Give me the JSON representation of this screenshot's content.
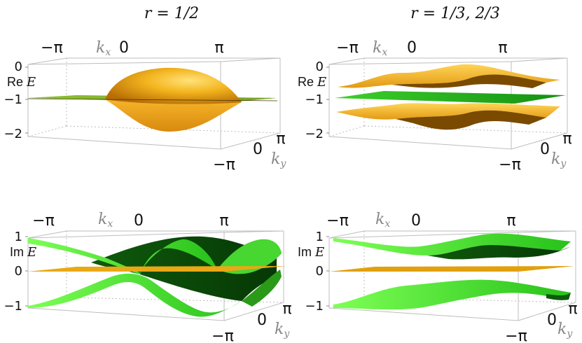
{
  "columns": [
    {
      "title": "r = 1/2"
    },
    {
      "title": "r = 1/3, 2/3"
    }
  ],
  "panels": [
    {
      "axis_label": "Re E",
      "axis_label_prefix": "Re",
      "axis_label_var": "E",
      "z_ticks": [
        "0",
        "−1",
        "−2"
      ],
      "kx_ticks": [
        "−π",
        "0",
        "π"
      ],
      "kx_label": "kx",
      "ky_ticks": [
        "−π",
        "0",
        "π"
      ],
      "ky_label": "ky"
    },
    {
      "axis_label": "Re E",
      "axis_label_prefix": "Re",
      "axis_label_var": "E",
      "z_ticks": [
        "0",
        "−1",
        "−2"
      ],
      "kx_ticks": [
        "−π",
        "0",
        "π"
      ],
      "kx_label": "kx",
      "ky_ticks": [
        "−π",
        "0",
        "π"
      ],
      "ky_label": "ky"
    },
    {
      "axis_label": "Im E",
      "axis_label_prefix": "Im",
      "axis_label_var": "E",
      "z_ticks": [
        "1",
        "0",
        "−1"
      ],
      "kx_ticks": [
        "−π",
        "0",
        "π"
      ],
      "kx_label": "kx",
      "ky_ticks": [
        "−π",
        "0",
        "π"
      ],
      "ky_label": "ky"
    },
    {
      "axis_label": "Im E",
      "axis_label_prefix": "Im",
      "axis_label_var": "E",
      "z_ticks": [
        "1",
        "0",
        "−1"
      ],
      "kx_ticks": [
        "−π",
        "0",
        "π"
      ],
      "kx_label": "kx",
      "ky_ticks": [
        "−π",
        "0",
        "π"
      ],
      "ky_label": "ky"
    }
  ],
  "colors": {
    "gold": "#f2b01e",
    "gold_dark": "#7a4a00",
    "green": "#1fa81a",
    "green_light": "#58e83a",
    "green_dark": "#0d4a0a",
    "box": "#bdbdbd"
  }
}
